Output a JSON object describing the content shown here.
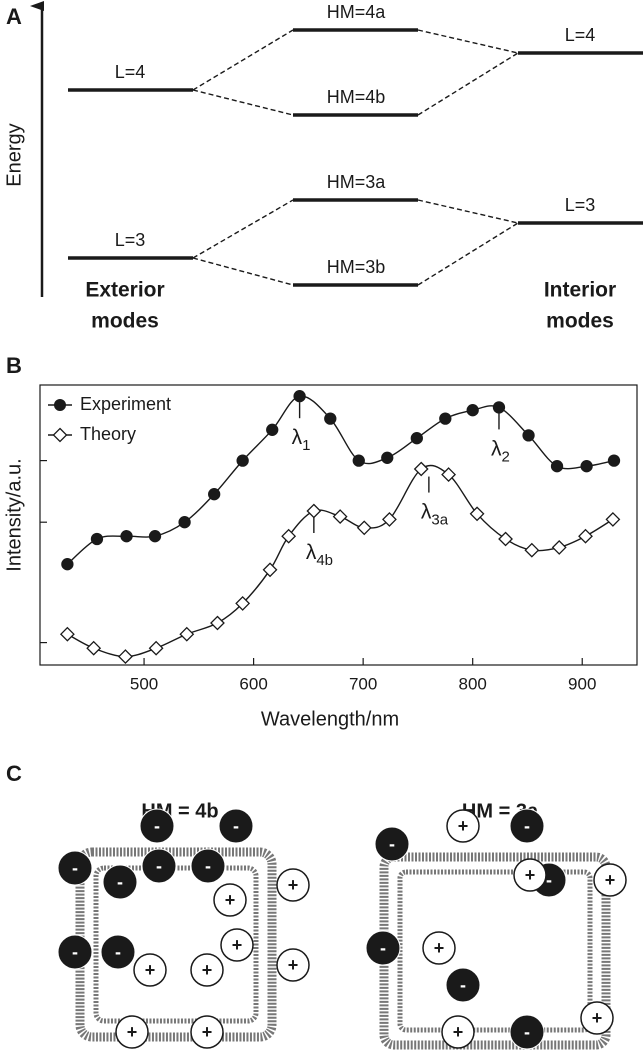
{
  "panel_a": {
    "letter": "A",
    "axis_label": "Energy",
    "exterior": {
      "levels": [
        "L=4",
        "L=3"
      ],
      "caption": [
        "Exterior",
        "modes"
      ]
    },
    "hybrid": {
      "levels": [
        "HM=4a",
        "HM=4b",
        "HM=3a",
        "HM=3b"
      ]
    },
    "interior": {
      "levels": [
        "L=4",
        "L=3"
      ],
      "caption": [
        "Interior",
        "modes"
      ]
    }
  },
  "chart_data": {
    "type": "line",
    "letter": "B",
    "x_label": "Wavelength/nm",
    "y_label": "Intensity/a.u.",
    "xlim": [
      405,
      950
    ],
    "xticks": [
      500,
      600,
      700,
      800,
      900
    ],
    "ylim": [
      0,
      10
    ],
    "yticks": [
      0.8,
      5.1,
      7.3
    ],
    "legend": "top-left",
    "series": [
      {
        "name": "Experiment",
        "color": "#1a1a1a",
        "marker": "circle",
        "filled": true,
        "x": [
          430,
          457,
          484,
          510,
          537,
          564,
          590,
          617,
          642,
          670,
          696,
          722,
          749,
          775,
          800,
          824,
          851,
          877,
          904,
          929
        ],
        "values": [
          3.6,
          4.5,
          4.6,
          4.6,
          5.1,
          6.1,
          7.3,
          8.4,
          9.6,
          8.8,
          7.3,
          7.4,
          8.1,
          8.8,
          9.1,
          9.2,
          8.2,
          7.1,
          7.1,
          7.3
        ],
        "annotations": [
          {
            "symbol": "λ",
            "sub": "1",
            "x": 642
          },
          {
            "symbol": "λ",
            "sub": "2",
            "x": 824
          }
        ]
      },
      {
        "name": "Theory",
        "color": "#1a1a1a",
        "marker": "diamond",
        "filled": false,
        "x": [
          430,
          454,
          483,
          511,
          539,
          567,
          590,
          615,
          632,
          655,
          679,
          701,
          724,
          753,
          778,
          804,
          830,
          854,
          879,
          903,
          928
        ],
        "values": [
          1.1,
          0.6,
          0.3,
          0.6,
          1.1,
          1.5,
          2.2,
          3.4,
          4.6,
          5.5,
          5.3,
          4.9,
          5.2,
          7.0,
          6.8,
          5.4,
          4.5,
          4.1,
          4.2,
          4.6,
          5.2
        ],
        "annotations": [
          {
            "symbol": "λ",
            "sub": "4b",
            "x": 655
          },
          {
            "symbol": "λ",
            "sub": "3a",
            "x": 760
          }
        ]
      }
    ]
  },
  "panel_c": {
    "letter": "C",
    "negative": "-",
    "positive": "+",
    "maps": [
      {
        "title": "HM = 4b"
      },
      {
        "title": "HM = 3a"
      }
    ]
  }
}
